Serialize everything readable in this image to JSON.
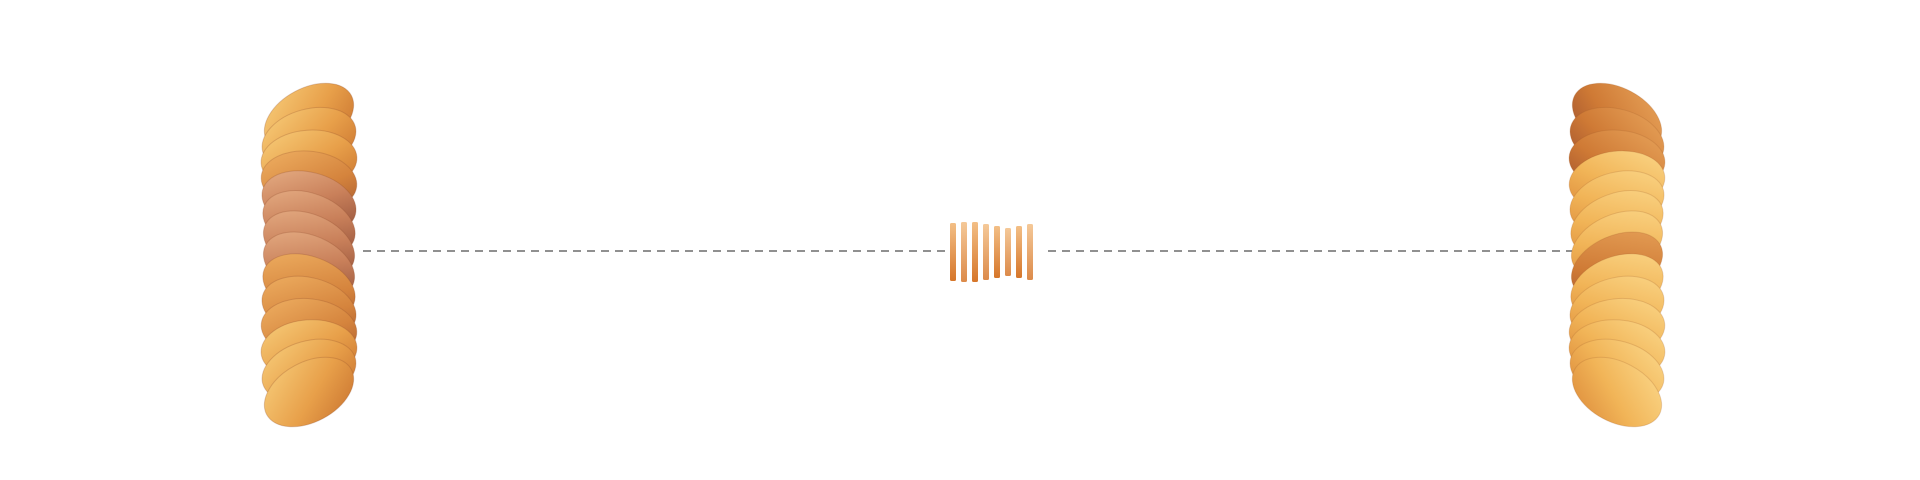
{
  "scene": {
    "description_free": true,
    "background_color": "#ffffff",
    "connector": {
      "style": "dashed",
      "color": "#6b6b6b"
    },
    "left_sculpture": {
      "icon": "twisted-disc-stack-icon",
      "disc_count": 14,
      "palette": {
        "light": "#f6c36a",
        "mid": "#e59a44",
        "dark": "#c46a2c",
        "shadow": "#8e4a32",
        "pink_highlight": "#d9a093"
      }
    },
    "center_sculpture": {
      "icon": "slatted-bowtie-icon",
      "slat_count": 8,
      "palette": {
        "light": "#f0b070",
        "mid": "#e08a3a",
        "dark": "#cf7028"
      }
    },
    "right_sculpture": {
      "icon": "twisted-disc-stack-icon",
      "disc_count": 14,
      "palette": {
        "light": "#f8cc78",
        "mid": "#efb054",
        "dark": "#d98538",
        "shadow": "#a9593a"
      }
    }
  }
}
